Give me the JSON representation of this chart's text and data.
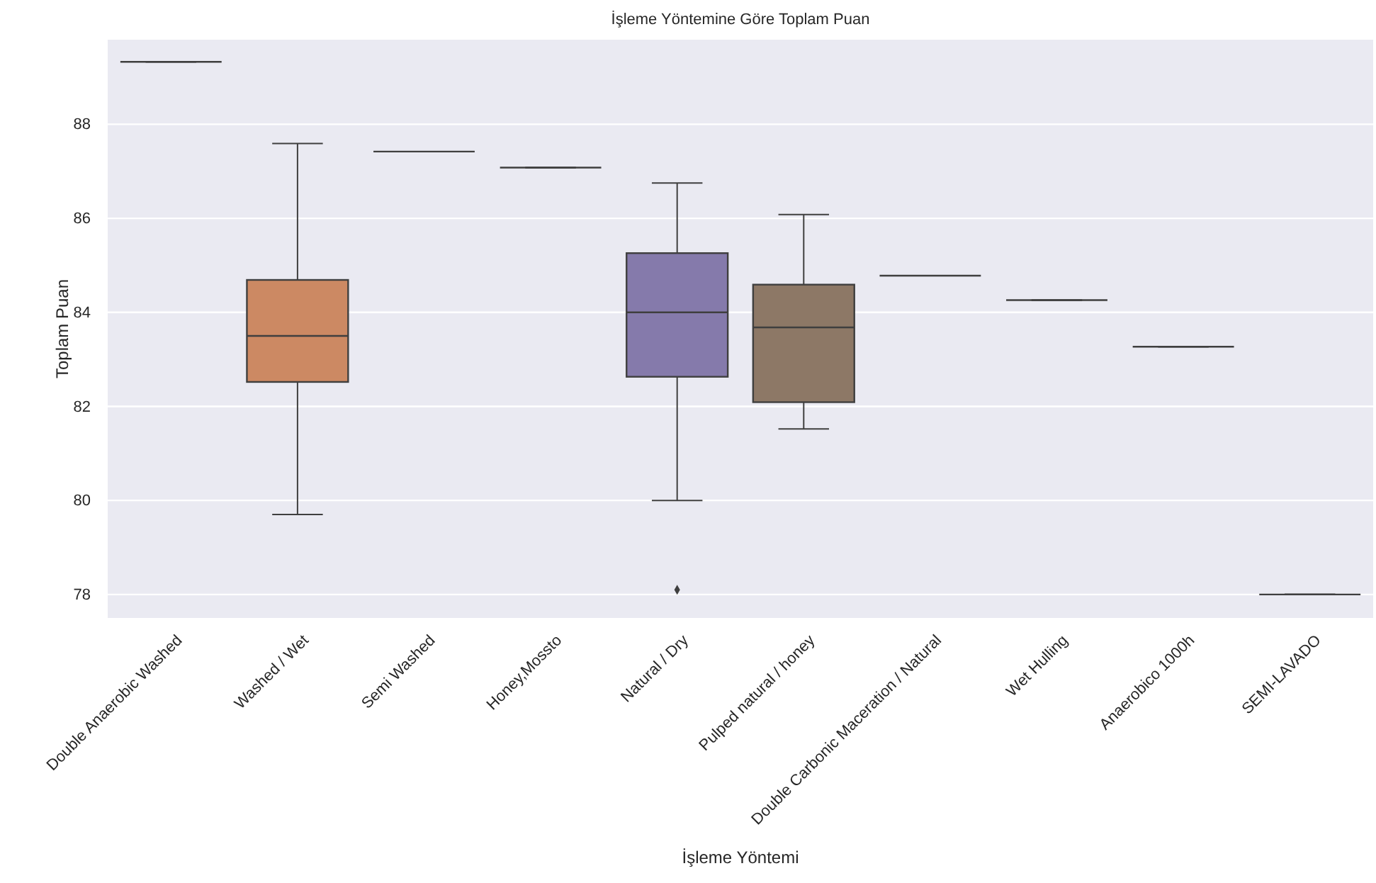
{
  "chart_data": {
    "type": "box",
    "title": "İşleme Yöntemine Göre Toplam Puan",
    "xlabel": "İşleme Yöntemi",
    "ylabel": "Toplam Puan",
    "categories": [
      "Double Anaerobic Washed",
      "Washed / Wet",
      "Semi Washed",
      "Honey,Mossto",
      "Natural / Dry",
      "Pulped natural / honey",
      "Double Carbonic Maceration / Natural",
      "Wet Hulling",
      "Anaerobico 1000h",
      "SEMI-LAVADO"
    ],
    "colors": [
      "#3f3f3f",
      "#cc8963",
      "#3f3f3f",
      "#3f3f3f",
      "#857aab",
      "#8d7866",
      "#3f3f3f",
      "#3f3f3f",
      "#3f3f3f",
      "#3f3f3f"
    ],
    "boxes": [
      {
        "low": 89.33,
        "q1": 89.33,
        "median": 89.33,
        "q3": 89.33,
        "high": 89.33
      },
      {
        "low": 79.7,
        "q1": 82.52,
        "median": 83.5,
        "q3": 84.69,
        "high": 87.59
      },
      {
        "low": 87.42,
        "q1": 87.42,
        "median": 87.42,
        "q3": 87.42,
        "high": 87.42
      },
      {
        "low": 87.08,
        "q1": 87.08,
        "median": 87.08,
        "q3": 87.08,
        "high": 87.08
      },
      {
        "low": 80.0,
        "q1": 82.63,
        "median": 84.0,
        "q3": 85.26,
        "high": 86.75,
        "outliers": [
          78.1
        ]
      },
      {
        "low": 81.52,
        "q1": 82.09,
        "median": 83.68,
        "q3": 84.59,
        "high": 86.08
      },
      {
        "low": 84.78,
        "q1": 84.78,
        "median": 84.78,
        "q3": 84.78,
        "high": 84.78
      },
      {
        "low": 84.26,
        "q1": 84.26,
        "median": 84.26,
        "q3": 84.26,
        "high": 84.26
      },
      {
        "low": 83.27,
        "q1": 83.27,
        "median": 83.27,
        "q3": 83.27,
        "high": 83.27
      },
      {
        "low": 78.0,
        "q1": 78.0,
        "median": 78.0,
        "q3": 78.0,
        "high": 78.0
      }
    ],
    "ylim": [
      77.5,
      89.8
    ],
    "yticks": [
      78,
      80,
      82,
      84,
      86,
      88
    ],
    "grid": "y"
  }
}
